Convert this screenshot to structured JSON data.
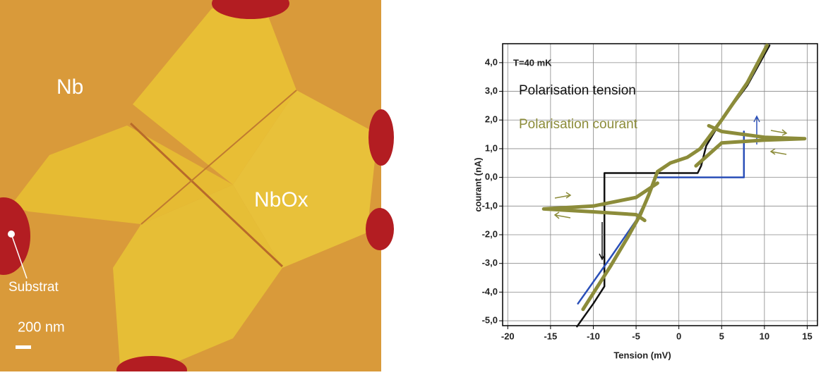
{
  "image": {
    "labels": [
      "Nb",
      "NbOx",
      "Substrat",
      "200 nm"
    ]
  },
  "chart_data": {
    "type": "line",
    "xlabel": "Tension (mV)",
    "ylabel": "courant (nA)",
    "annotation": "T=40 mK",
    "xlim": [
      -20.6,
      16.2
    ],
    "xticks": [
      -20,
      -15,
      -10,
      -5,
      0,
      5,
      10,
      15
    ],
    "ylim": [
      -5.17,
      4.66
    ],
    "yticks": [
      {
        "value": -5,
        "label": "-5,0"
      },
      {
        "value": -4,
        "label": "-4,0"
      },
      {
        "value": -3,
        "label": "-3,0"
      },
      {
        "value": -2,
        "label": "-2,0"
      },
      {
        "value": -1,
        "label": "-1,0"
      },
      {
        "value": 0,
        "label": "0,0"
      },
      {
        "value": 1,
        "label": "1,0"
      },
      {
        "value": 2,
        "label": "2,0"
      },
      {
        "value": 3,
        "label": "3,0"
      },
      {
        "value": 4,
        "label": "4,0"
      }
    ],
    "grid": true,
    "legend": "upper left",
    "series": [
      {
        "name": "Polarisation tension",
        "color": "#111111",
        "x": [
          -11.9,
          -10,
          -8.7,
          -8.7,
          -5,
          0,
          2.2,
          2.6,
          3.2,
          5,
          8,
          10.6
        ],
        "values": [
          -5.2,
          -4.4,
          -3.8,
          0.15,
          0.15,
          0.15,
          0.15,
          0.4,
          1.1,
          2.0,
          3.2,
          4.6
        ]
      },
      {
        "name": null,
        "color": "#2a4fb8",
        "x": [
          -11.8,
          -8,
          -5,
          -3.2,
          -2.8,
          0,
          2.5,
          5,
          7.6,
          7.6,
          null,
          8.5,
          10.3
        ],
        "values": [
          -4.4,
          -2.8,
          -1.5,
          -0.4,
          0.0,
          0.0,
          0.0,
          0.0,
          0.0,
          1.6,
          null,
          3.5,
          4.6
        ]
      },
      {
        "name": "Polarisation courant",
        "color": "#8c8c3a",
        "x": [
          -11.2,
          -8,
          -6,
          -4.5,
          -3.5,
          -2.5,
          -1,
          1,
          2.5,
          3.5,
          5,
          8,
          10.3,
          null,
          -2.5,
          -5,
          -10,
          -15.8,
          -10,
          -5,
          -4,
          null,
          2,
          5,
          10,
          14.7,
          10,
          5,
          3.5
        ],
        "values": [
          -4.6,
          -3.1,
          -2.1,
          -1.3,
          -0.6,
          0.2,
          0.5,
          0.7,
          1.0,
          1.4,
          2.0,
          3.3,
          4.6,
          null,
          -0.2,
          -0.7,
          -1.0,
          -1.1,
          -1.2,
          -1.3,
          -1.5,
          null,
          0.4,
          1.2,
          1.3,
          1.35,
          1.4,
          1.6,
          1.8
        ]
      }
    ]
  }
}
